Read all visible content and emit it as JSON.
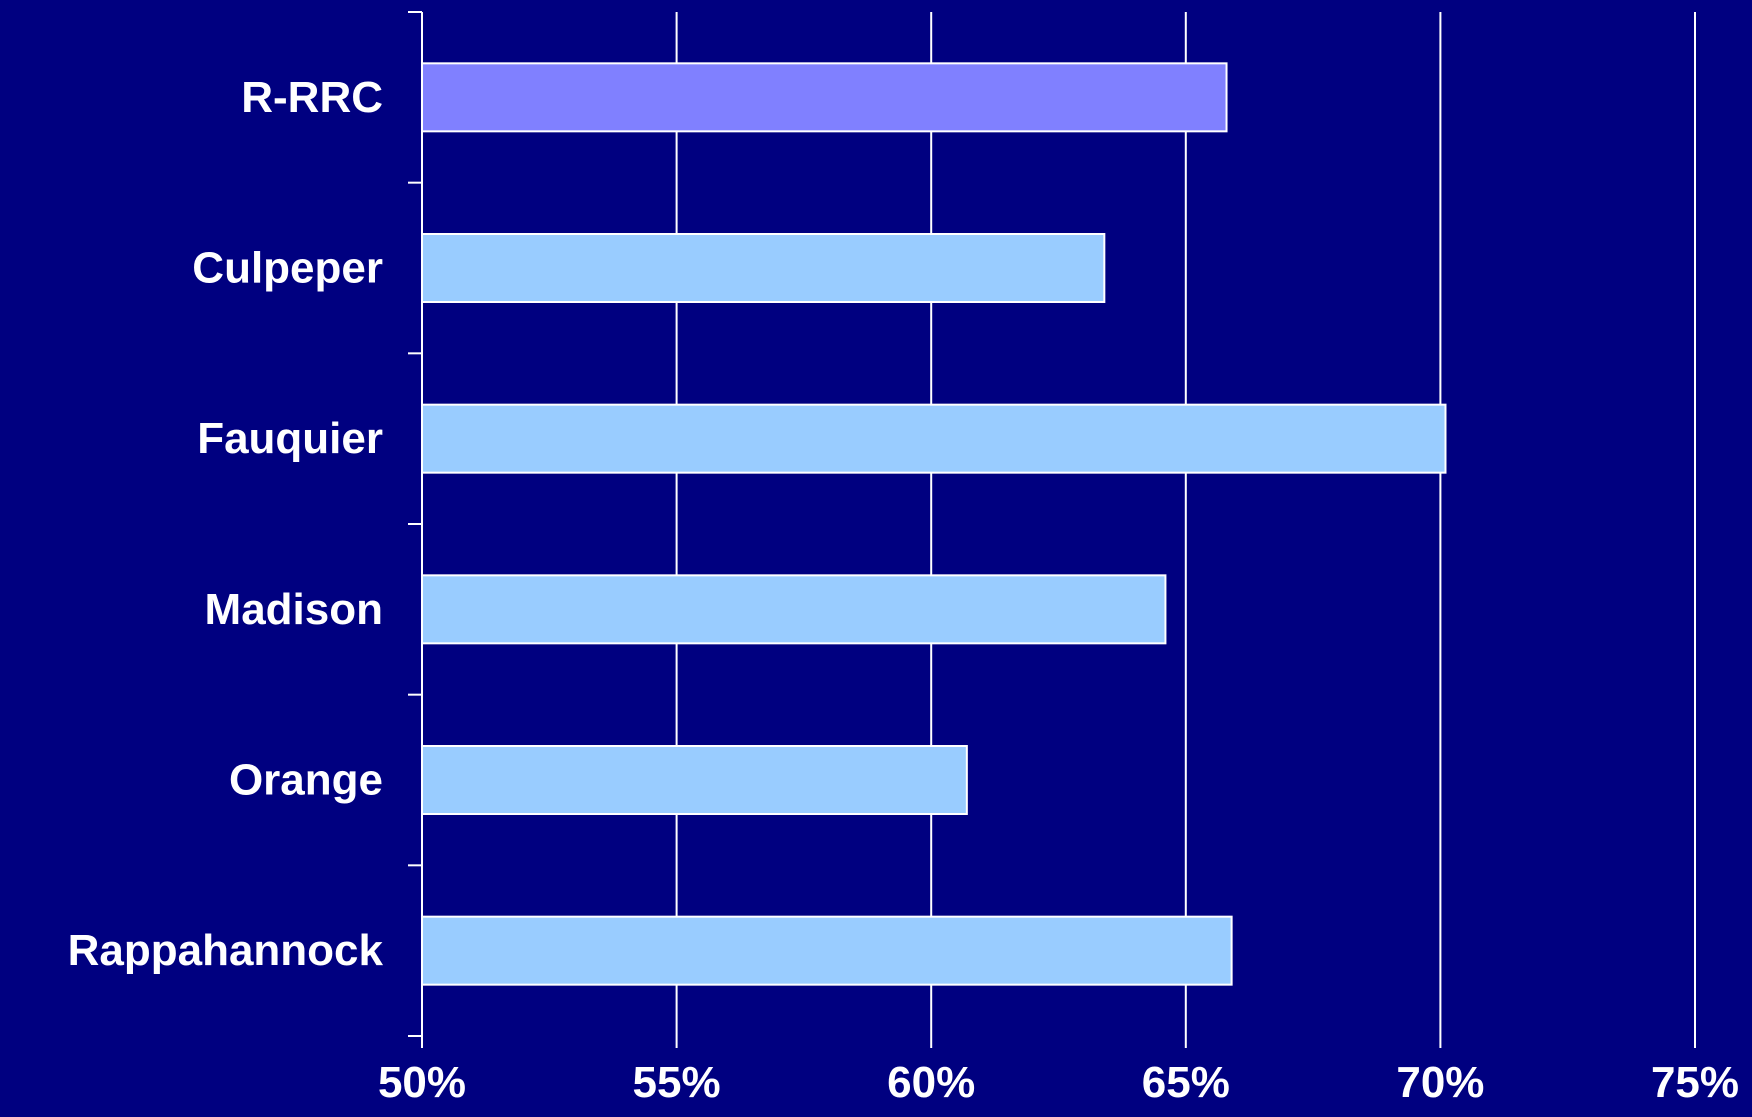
{
  "chart_data": {
    "type": "bar",
    "orientation": "horizontal",
    "categories": [
      "R-RRC",
      "Culpeper",
      "Fauquier",
      "Madison",
      "Orange",
      "Rappahannock"
    ],
    "values": [
      65.8,
      63.4,
      70.1,
      64.6,
      60.7,
      65.9
    ],
    "highlight": [
      "R-RRC"
    ],
    "xlim": [
      50,
      75
    ],
    "xticks": [
      "50%",
      "55%",
      "60%",
      "65%",
      "70%",
      "75%"
    ],
    "xtick_values": [
      50,
      55,
      60,
      65,
      70,
      75
    ],
    "grid": true,
    "legend": "none",
    "title": "",
    "xlabel": "",
    "ylabel": ""
  },
  "colors": {
    "background": "#000080",
    "bar": "#99ccff",
    "bar_highlight": "#8080ff",
    "bar_stroke": "#ffffff",
    "axis": "#ffffff",
    "grid": "#ffffff",
    "text": "#ffffff"
  }
}
